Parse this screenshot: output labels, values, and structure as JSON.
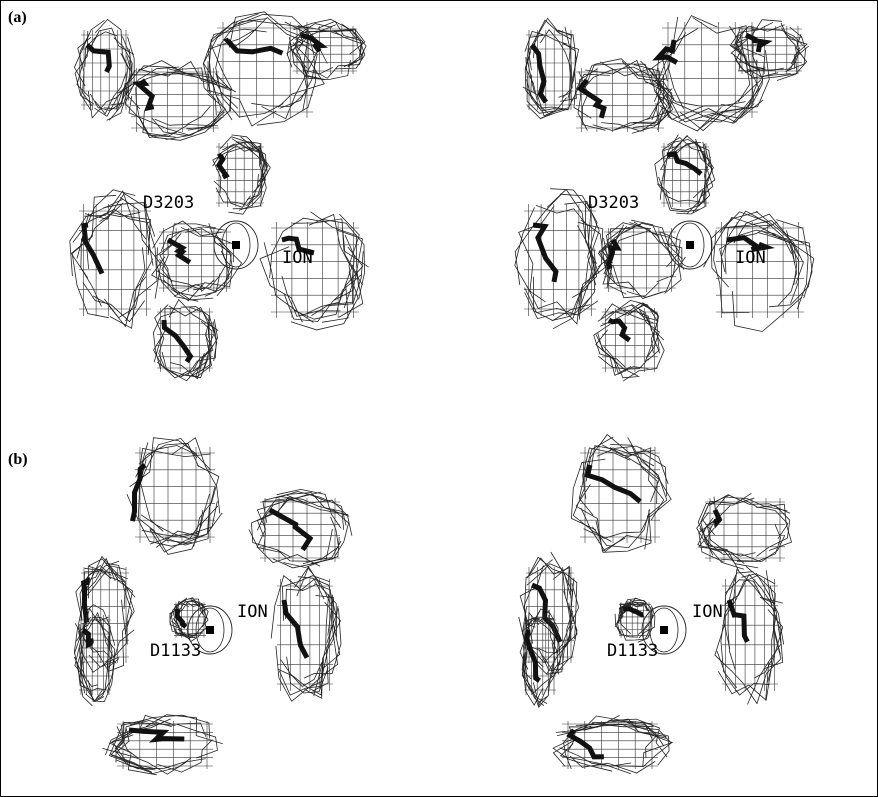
{
  "panels": [
    {
      "label": "(a)",
      "views": [
        {
          "labels": [
            "D3203",
            "ION"
          ]
        },
        {
          "labels": [
            "D3203",
            "ION"
          ]
        }
      ]
    },
    {
      "label": "(b)",
      "views": [
        {
          "labels": [
            "ION",
            "D1133"
          ]
        },
        {
          "labels": [
            "ION",
            "D1133"
          ]
        }
      ]
    }
  ]
}
